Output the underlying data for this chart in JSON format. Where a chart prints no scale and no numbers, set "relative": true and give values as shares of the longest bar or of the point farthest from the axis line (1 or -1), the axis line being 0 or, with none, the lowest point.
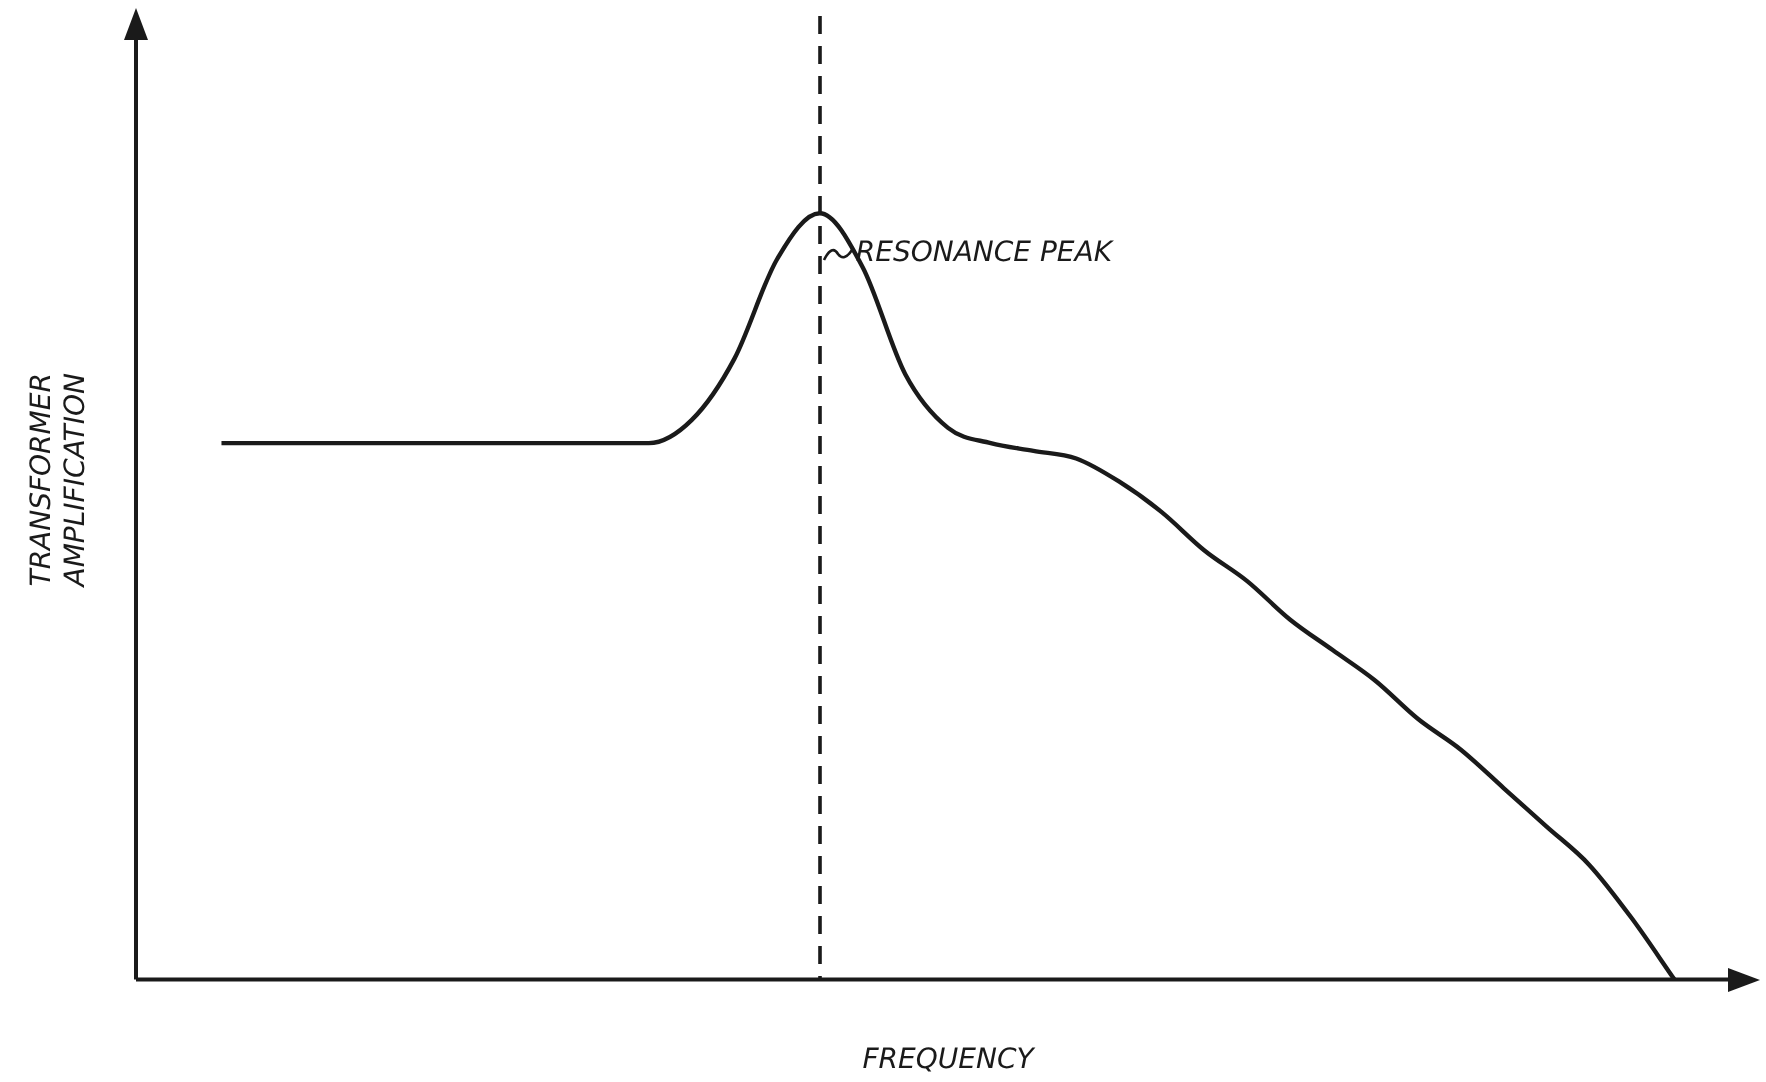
{
  "chart_data": {
    "type": "line",
    "relative": true,
    "xlabel": "FREQUENCY",
    "ylabel": "TRANSFORMER AMPLIFICATION",
    "color": "#1a1a1a",
    "marker": "none",
    "grid": false,
    "legend": false,
    "categories": [
      null,
      null,
      null,
      null,
      null,
      null,
      null,
      null,
      null,
      null,
      null,
      null,
      null,
      null,
      null,
      null,
      null,
      null,
      null,
      null,
      null,
      null,
      null,
      null,
      null,
      null,
      null,
      null,
      null,
      null,
      null,
      null,
      null,
      null,
      null,
      null,
      null,
      null,
      null
    ],
    "values": [
      null,
      null,
      0.7,
      0.7,
      0.7,
      0.7,
      0.7,
      0.7,
      0.7,
      0.7,
      0.7,
      0.7,
      0.7,
      0.73,
      0.81,
      0.94,
      1.0,
      0.93,
      0.79,
      0.72,
      0.7,
      0.69,
      0.68,
      0.65,
      0.61,
      0.56,
      0.52,
      0.47,
      0.43,
      0.39,
      0.34,
      0.3,
      0.25,
      0.2,
      0.15,
      0.08,
      0,
      null,
      null
    ],
    "annotations": [
      "RESONANCE PEAK"
    ]
  }
}
